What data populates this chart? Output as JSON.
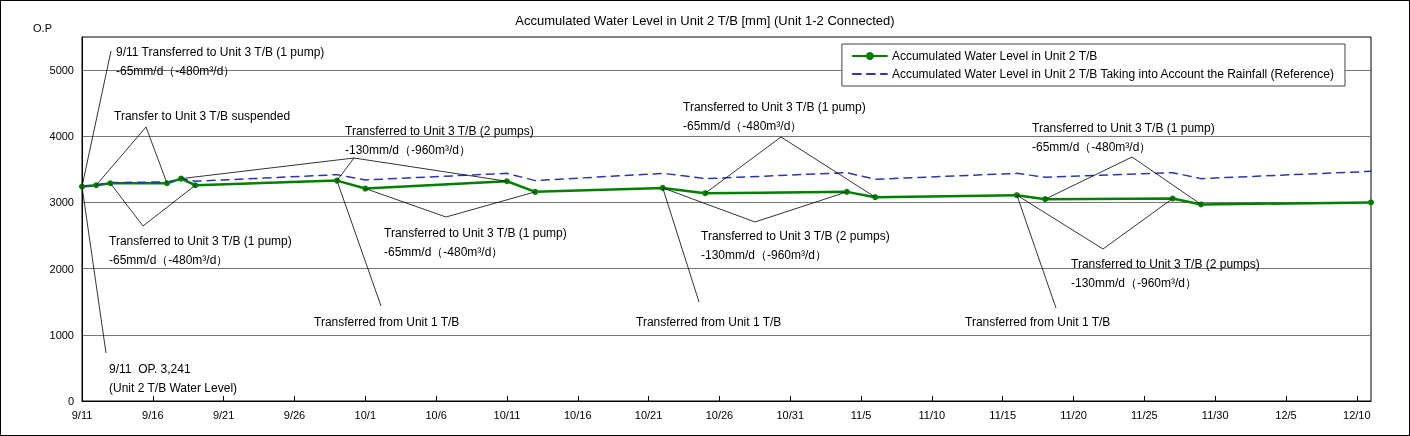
{
  "chart_data": {
    "type": "line",
    "title": "Accumulated Water Level in Unit 2 T/B [mm] (Unit 1-2 Connected)",
    "ylabel": "O.P",
    "x": [
      "--09-11",
      "--09-12",
      "--09-13",
      "--09-17",
      "--09-18",
      "--09-19",
      "--09-29",
      "--10-01",
      "--10-11",
      "--10-13",
      "--10-22",
      "--10-25",
      "--11-04",
      "--11-06",
      "--11-16",
      "--11-18",
      "--11-27",
      "--11-29",
      "--12-11"
    ],
    "series": [
      {
        "name": "Accumulated Water Level in Unit 2 T/B",
        "color": "#008000",
        "marker": "circle",
        "line_style": "solid",
        "values": [
          3240,
          3260,
          3290,
          3290,
          3360,
          3260,
          3330,
          3210,
          3320,
          3160,
          3220,
          3140,
          3160,
          3080,
          3110,
          3050,
          3060,
          2970,
          3000
        ]
      },
      {
        "name": "Accumulated Water Level in Unit 2 T/B Taking into Account the Rainfall (Reference)",
        "color": "#2b35b8",
        "marker": "none",
        "line_style": "dashed",
        "values": [
          3240,
          3260,
          3300,
          3310,
          3360,
          3320,
          3420,
          3340,
          3440,
          3330,
          3440,
          3360,
          3450,
          3350,
          3440,
          3380,
          3450,
          3360,
          3470
        ]
      }
    ],
    "xlim": [
      "--09-11",
      "--12-11"
    ],
    "xticks": [
      {
        "value": "--09-11",
        "label": "9/11"
      },
      {
        "value": "--09-16",
        "label": "9/16"
      },
      {
        "value": "--09-21",
        "label": "9/21"
      },
      {
        "value": "--09-26",
        "label": "9/26"
      },
      {
        "value": "--10-01",
        "label": "10/1"
      },
      {
        "value": "--10-06",
        "label": "10/6"
      },
      {
        "value": "--10-11",
        "label": "10/11"
      },
      {
        "value": "--10-16",
        "label": "10/16"
      },
      {
        "value": "--10-21",
        "label": "10/21"
      },
      {
        "value": "--10-26",
        "label": "10/26"
      },
      {
        "value": "--10-31",
        "label": "10/31"
      },
      {
        "value": "--11-05",
        "label": "11/5"
      },
      {
        "value": "--11-10",
        "label": "11/10"
      },
      {
        "value": "--11-15",
        "label": "11/15"
      },
      {
        "value": "--11-20",
        "label": "11/20"
      },
      {
        "value": "--11-25",
        "label": "11/25"
      },
      {
        "value": "--11-30",
        "label": "11/30"
      },
      {
        "value": "--12-05",
        "label": "12/5"
      },
      {
        "value": "--12-10",
        "label": "12/10"
      }
    ],
    "ylim": [
      0,
      5500
    ],
    "yticks": [
      0,
      1000,
      2000,
      3000,
      4000,
      5000
    ],
    "grid": "y",
    "legend": "top right",
    "annotations": [
      {
        "text": "9/11 Transferred to Unit 3 T/B (1 pump)\n-65mm/d（-480m³/d）",
        "x": "--09-11",
        "y": 3240
      },
      {
        "text": "Transfer to Unit 3 T/B suspended",
        "x": "--09-12",
        "y": 3260
      },
      {
        "text": "Transferred to Unit 3 T/B (1 pump)\n-65mm/d（-480m³/d）",
        "x": "--09-13",
        "y": 3290
      },
      {
        "text": "Transferred to Unit 3 T/B (2 pumps)\n-130mm/d（-960m³/d）",
        "x": "--09-29",
        "y": 3330
      },
      {
        "text": "Transferred to Unit 3 T/B (1 pump)\n-65mm/d（-480m³/d）",
        "x": "--10-01",
        "y": 3210
      },
      {
        "text": "Transferred from Unit 1 T/B",
        "x": "--09-29",
        "y": 3330
      },
      {
        "text": "Transferred to Unit 3 T/B (1 pump)\n-65mm/d（-480m³/d）",
        "x": "--10-25",
        "y": 3140
      },
      {
        "text": "Transferred to Unit 3 T/B (2 pumps)\n-130mm/d（-960m³/d）",
        "x": "--10-22",
        "y": 3220
      },
      {
        "text": "Transferred from Unit 1 T/B",
        "x": "--10-22",
        "y": 3220
      },
      {
        "text": "Transferred to Unit 3 T/B (1 pump)\n-65mm/d（-480m³/d）",
        "x": "--11-18",
        "y": 3050
      },
      {
        "text": "Transferred to Unit 3 T/B (2 pumps)\n-130mm/d（-960m³/d）",
        "x": "--11-16",
        "y": 3110
      },
      {
        "text": "Transferred from Unit 1 T/B",
        "x": "--11-16",
        "y": 3110
      },
      {
        "text": "9/11  OP. 3,241\n(Unit 2 T/B Water Level)",
        "x": "--09-11",
        "y": 3240
      }
    ]
  }
}
